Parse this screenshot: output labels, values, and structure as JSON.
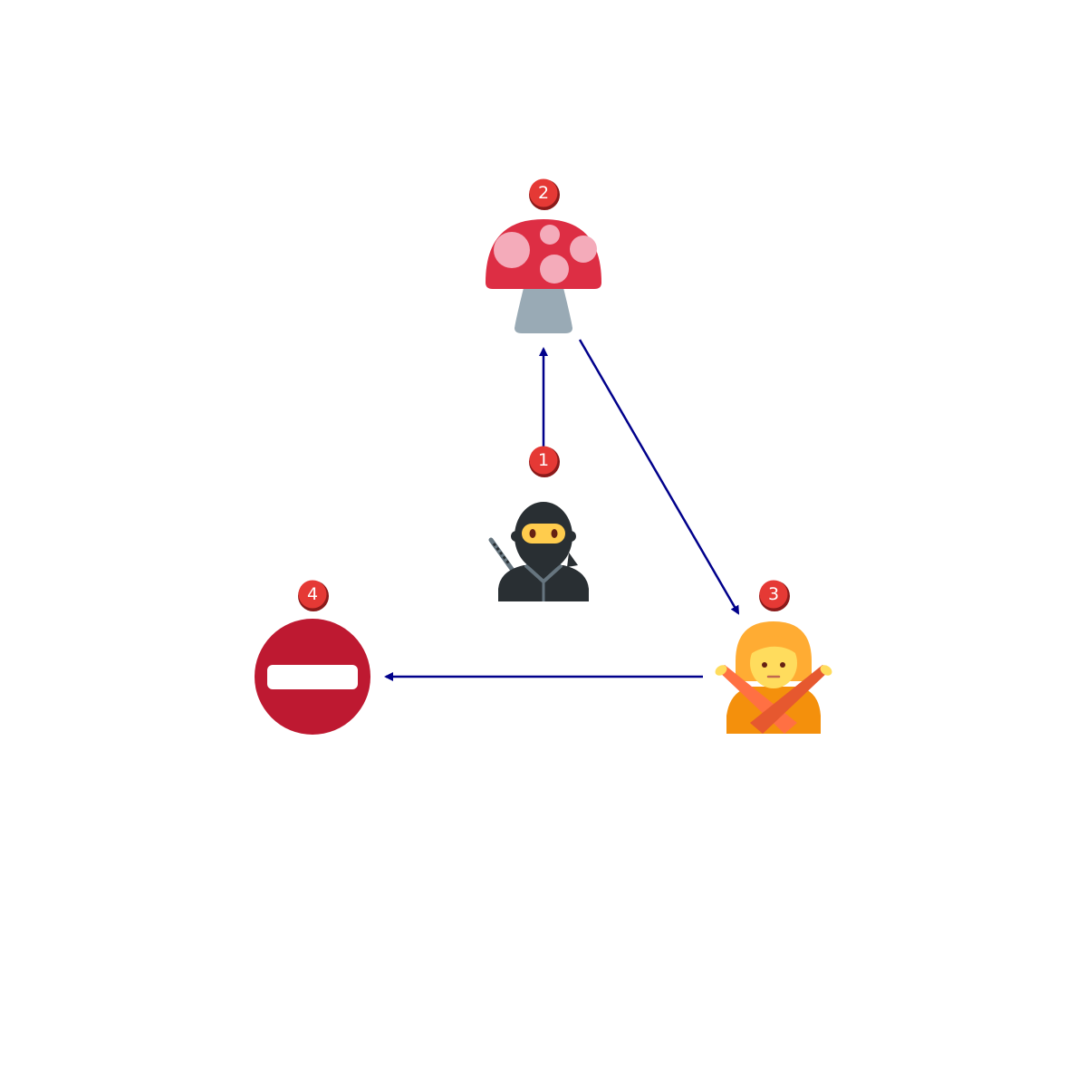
{
  "colors": {
    "background": "#ffffff",
    "arrow": "#00008b",
    "badge_fill": "#e53935",
    "badge_stroke": "#8b1a1a"
  },
  "nodes": [
    {
      "id": "ninja",
      "icon": "ninja-icon",
      "step": "1"
    },
    {
      "id": "mushroom",
      "icon": "mushroom-icon",
      "step": "2"
    },
    {
      "id": "person-gesturing-no",
      "icon": "person-gesturing-no-icon",
      "step": "3"
    },
    {
      "id": "no-entry",
      "icon": "no-entry-icon",
      "step": "4"
    }
  ],
  "edges": [
    {
      "from": "ninja",
      "to": "mushroom"
    },
    {
      "from": "mushroom",
      "to": "person-gesturing-no"
    },
    {
      "from": "person-gesturing-no",
      "to": "no-entry"
    }
  ]
}
